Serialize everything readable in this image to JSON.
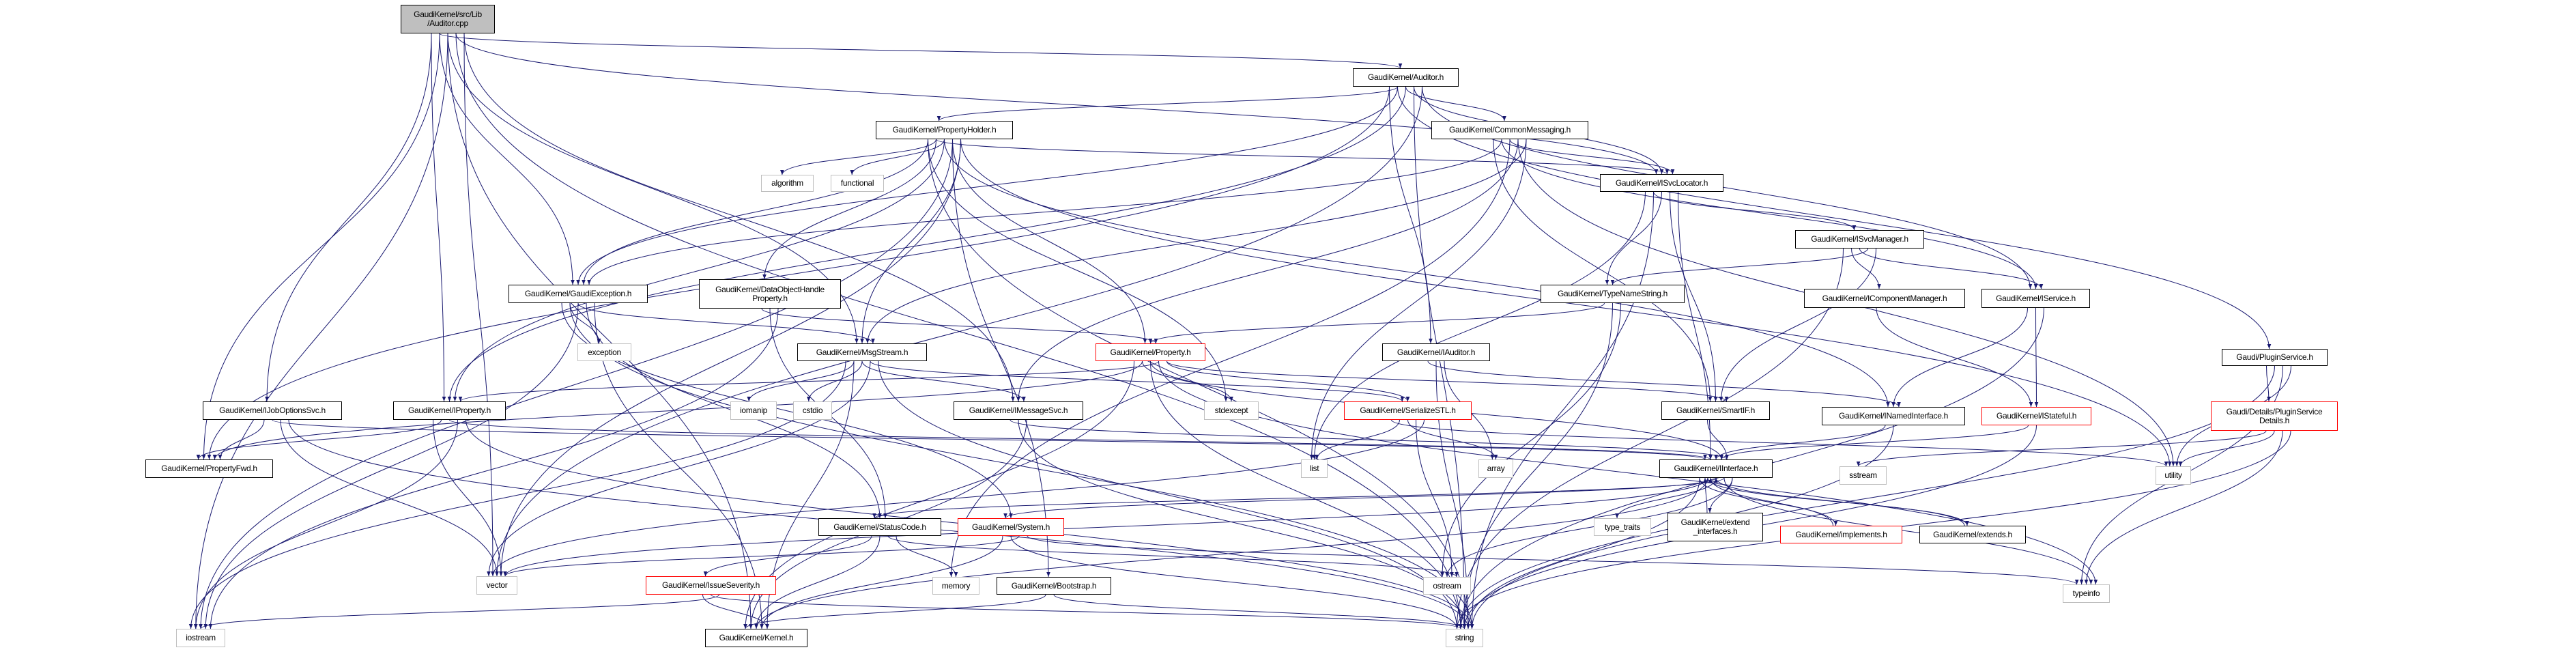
{
  "colors": {
    "edge": "#191970",
    "root_fill": "#bfbfbf",
    "red_border": "#ff0000",
    "external_border": "#bfbfbf",
    "normal_border": "#000000"
  },
  "nodes": [
    {
      "id": "cpp",
      "label": "GaudiKernel/src/Lib\n/Auditor.cpp",
      "kind": "root"
    },
    {
      "id": "auditor_h",
      "label": "GaudiKernel/Auditor.h",
      "kind": "normal"
    },
    {
      "id": "propholder",
      "label": "GaudiKernel/PropertyHolder.h",
      "kind": "normal"
    },
    {
      "id": "commonmsg",
      "label": "GaudiKernel/CommonMessaging.h",
      "kind": "normal"
    },
    {
      "id": "algorithm",
      "label": "algorithm",
      "kind": "ext"
    },
    {
      "id": "functional",
      "label": "functional",
      "kind": "ext"
    },
    {
      "id": "isvclocator",
      "label": "GaudiKernel/ISvcLocator.h",
      "kind": "normal"
    },
    {
      "id": "isvcmanager",
      "label": "GaudiKernel/ISvcManager.h",
      "kind": "normal"
    },
    {
      "id": "gaudiexc",
      "label": "GaudiKernel/GaudiException.h",
      "kind": "normal"
    },
    {
      "id": "dohp",
      "label": "GaudiKernel/DataObjectHandle\nProperty.h",
      "kind": "normal"
    },
    {
      "id": "typename",
      "label": "GaudiKernel/TypeNameString.h",
      "kind": "normal"
    },
    {
      "id": "icompmgr",
      "label": "GaudiKernel/IComponentManager.h",
      "kind": "normal"
    },
    {
      "id": "iservice",
      "label": "GaudiKernel/IService.h",
      "kind": "normal"
    },
    {
      "id": "exception",
      "label": "exception",
      "kind": "ext"
    },
    {
      "id": "msgstream",
      "label": "GaudiKernel/MsgStream.h",
      "kind": "normal"
    },
    {
      "id": "property",
      "label": "GaudiKernel/Property.h",
      "kind": "red"
    },
    {
      "id": "iauditor",
      "label": "GaudiKernel/IAuditor.h",
      "kind": "normal"
    },
    {
      "id": "pluginsvc",
      "label": "Gaudi/PluginService.h",
      "kind": "normal"
    },
    {
      "id": "ijobopt",
      "label": "GaudiKernel/IJobOptionsSvc.h",
      "kind": "normal"
    },
    {
      "id": "iproperty",
      "label": "GaudiKernel/IProperty.h",
      "kind": "normal"
    },
    {
      "id": "iomanip",
      "label": "iomanip",
      "kind": "ext"
    },
    {
      "id": "cstdio",
      "label": "cstdio",
      "kind": "ext"
    },
    {
      "id": "imsgsvc",
      "label": "GaudiKernel/IMessageSvc.h",
      "kind": "normal"
    },
    {
      "id": "stdexcept",
      "label": "stdexcept",
      "kind": "ext"
    },
    {
      "id": "serialize",
      "label": "GaudiKernel/SerializeSTL.h",
      "kind": "red"
    },
    {
      "id": "smartif",
      "label": "GaudiKernel/SmartIF.h",
      "kind": "normal"
    },
    {
      "id": "inamed",
      "label": "GaudiKernel/INamedInterface.h",
      "kind": "normal"
    },
    {
      "id": "istateful",
      "label": "GaudiKernel/IStateful.h",
      "kind": "red"
    },
    {
      "id": "psdetails",
      "label": "Gaudi/Details/PluginService\nDetails.h",
      "kind": "red"
    },
    {
      "id": "propfwd",
      "label": "GaudiKernel/PropertyFwd.h",
      "kind": "normal"
    },
    {
      "id": "list",
      "label": "list",
      "kind": "ext"
    },
    {
      "id": "array",
      "label": "array",
      "kind": "ext"
    },
    {
      "id": "iinterface",
      "label": "GaudiKernel/IInterface.h",
      "kind": "normal"
    },
    {
      "id": "sstream",
      "label": "sstream",
      "kind": "ext"
    },
    {
      "id": "utility",
      "label": "utility",
      "kind": "ext"
    },
    {
      "id": "statuscode",
      "label": "GaudiKernel/StatusCode.h",
      "kind": "normal"
    },
    {
      "id": "system",
      "label": "GaudiKernel/System.h",
      "kind": "red"
    },
    {
      "id": "typetraits",
      "label": "type_traits",
      "kind": "ext"
    },
    {
      "id": "extendif",
      "label": "GaudiKernel/extend\n_interfaces.h",
      "kind": "normal"
    },
    {
      "id": "implements",
      "label": "GaudiKernel/implements.h",
      "kind": "red"
    },
    {
      "id": "extends",
      "label": "GaudiKernel/extends.h",
      "kind": "normal"
    },
    {
      "id": "vector",
      "label": "vector",
      "kind": "ext"
    },
    {
      "id": "issuesev",
      "label": "GaudiKernel/IssueSeverity.h",
      "kind": "red"
    },
    {
      "id": "memory",
      "label": "memory",
      "kind": "ext"
    },
    {
      "id": "bootstrap",
      "label": "GaudiKernel/Bootstrap.h",
      "kind": "normal"
    },
    {
      "id": "ostream",
      "label": "ostream",
      "kind": "ext"
    },
    {
      "id": "typeinfo",
      "label": "typeinfo",
      "kind": "ext"
    },
    {
      "id": "iostream",
      "label": "iostream",
      "kind": "ext"
    },
    {
      "id": "kernel",
      "label": "GaudiKernel/Kernel.h",
      "kind": "normal"
    },
    {
      "id": "string",
      "label": "string",
      "kind": "ext"
    }
  ],
  "edges": [
    [
      "cpp",
      "auditor_h"
    ],
    [
      "cpp",
      "kernel"
    ],
    [
      "cpp",
      "isvclocator"
    ],
    [
      "cpp",
      "imsgsvc"
    ],
    [
      "cpp",
      "ijobopt"
    ],
    [
      "cpp",
      "gaudiexc"
    ],
    [
      "cpp",
      "msgstream"
    ],
    [
      "cpp",
      "string"
    ],
    [
      "cpp",
      "vector"
    ],
    [
      "cpp",
      "iproperty"
    ],
    [
      "cpp",
      "propfwd"
    ],
    [
      "cpp",
      "iostream"
    ],
    [
      "auditor_h",
      "propholder"
    ],
    [
      "auditor_h",
      "commonmsg"
    ],
    [
      "auditor_h",
      "isvclocator"
    ],
    [
      "auditor_h",
      "iservice"
    ],
    [
      "auditor_h",
      "iauditor"
    ],
    [
      "auditor_h",
      "pluginsvc"
    ],
    [
      "auditor_h",
      "iproperty"
    ],
    [
      "auditor_h",
      "string"
    ],
    [
      "auditor_h",
      "vector"
    ],
    [
      "auditor_h",
      "propfwd"
    ],
    [
      "auditor_h",
      "gaudiexc"
    ],
    [
      "propholder",
      "algorithm"
    ],
    [
      "propholder",
      "functional"
    ],
    [
      "propholder",
      "iostream"
    ],
    [
      "propholder",
      "vector"
    ],
    [
      "propholder",
      "stdexcept"
    ],
    [
      "propholder",
      "dohp"
    ],
    [
      "propholder",
      "iproperty"
    ],
    [
      "propholder",
      "property"
    ],
    [
      "propholder",
      "msgstream"
    ],
    [
      "propholder",
      "gaudiexc"
    ],
    [
      "propholder",
      "isvclocator"
    ],
    [
      "propholder",
      "inamed"
    ],
    [
      "propholder",
      "bootstrap"
    ],
    [
      "propholder",
      "utility"
    ],
    [
      "propholder",
      "string"
    ],
    [
      "commonmsg",
      "iservice"
    ],
    [
      "commonmsg",
      "isvclocator"
    ],
    [
      "commonmsg",
      "imsgsvc"
    ],
    [
      "commonmsg",
      "msgstream"
    ],
    [
      "commonmsg",
      "smartif"
    ],
    [
      "commonmsg",
      "gaudiexc"
    ],
    [
      "commonmsg",
      "memory"
    ],
    [
      "commonmsg",
      "utility"
    ],
    [
      "commonmsg",
      "list"
    ],
    [
      "isvclocator",
      "isvcmanager"
    ],
    [
      "isvclocator",
      "typename"
    ],
    [
      "isvclocator",
      "smartif"
    ],
    [
      "isvclocator",
      "iinterface"
    ],
    [
      "isvclocator",
      "list"
    ],
    [
      "isvclocator",
      "string"
    ],
    [
      "isvcmanager",
      "icompmgr"
    ],
    [
      "isvcmanager",
      "iservice"
    ],
    [
      "isvcmanager",
      "typename"
    ],
    [
      "isvcmanager",
      "smartif"
    ],
    [
      "isvcmanager",
      "string"
    ],
    [
      "icompmgr",
      "istateful"
    ],
    [
      "iservice",
      "inamed"
    ],
    [
      "iservice",
      "istateful"
    ],
    [
      "iservice",
      "string"
    ],
    [
      "typename",
      "property"
    ],
    [
      "typename",
      "string"
    ],
    [
      "typename",
      "ostream"
    ],
    [
      "iauditor",
      "inamed"
    ],
    [
      "iauditor",
      "string"
    ],
    [
      "iauditor",
      "array"
    ],
    [
      "pluginsvc",
      "psdetails"
    ],
    [
      "pluginsvc",
      "string"
    ],
    [
      "pluginsvc",
      "typeinfo"
    ],
    [
      "pluginsvc",
      "utility"
    ],
    [
      "psdetails",
      "sstream"
    ],
    [
      "psdetails",
      "utility"
    ],
    [
      "psdetails",
      "typeinfo"
    ],
    [
      "psdetails",
      "string"
    ],
    [
      "inamed",
      "iinterface"
    ],
    [
      "inamed",
      "string"
    ],
    [
      "istateful",
      "iinterface"
    ],
    [
      "istateful",
      "string"
    ],
    [
      "smartif",
      "iinterface"
    ],
    [
      "iinterface",
      "kernel"
    ],
    [
      "iinterface",
      "system"
    ],
    [
      "iinterface",
      "statuscode"
    ],
    [
      "iinterface",
      "extendif"
    ],
    [
      "iinterface",
      "implements"
    ],
    [
      "iinterface",
      "extends"
    ],
    [
      "iinterface",
      "typetraits"
    ],
    [
      "iinterface",
      "typeinfo"
    ],
    [
      "iinterface",
      "ostream"
    ],
    [
      "iinterface",
      "string"
    ],
    [
      "iinterface",
      "vector"
    ],
    [
      "extendif",
      "iinterface"
    ],
    [
      "implements",
      "iinterface"
    ],
    [
      "extends",
      "iinterface"
    ],
    [
      "gaudiexc",
      "exception"
    ],
    [
      "gaudiexc",
      "msgstream"
    ],
    [
      "gaudiexc",
      "statuscode"
    ],
    [
      "gaudiexc",
      "kernel"
    ],
    [
      "gaudiexc",
      "system"
    ],
    [
      "gaudiexc",
      "string"
    ],
    [
      "gaudiexc",
      "iostream"
    ],
    [
      "dohp",
      "property"
    ],
    [
      "dohp",
      "statuscode"
    ],
    [
      "dohp",
      "iostream"
    ],
    [
      "msgstream",
      "iomanip"
    ],
    [
      "msgstream",
      "cstdio"
    ],
    [
      "msgstream",
      "vector"
    ],
    [
      "msgstream",
      "string"
    ],
    [
      "msgstream",
      "iostream"
    ],
    [
      "msgstream",
      "kernel"
    ],
    [
      "msgstream",
      "imsgsvc"
    ],
    [
      "msgstream",
      "serialize"
    ],
    [
      "property",
      "stdexcept"
    ],
    [
      "property",
      "string"
    ],
    [
      "property",
      "iproperty"
    ],
    [
      "property",
      "serialize"
    ],
    [
      "property",
      "kernel"
    ],
    [
      "property",
      "propfwd"
    ],
    [
      "property",
      "iinterface"
    ],
    [
      "property",
      "typeinfo"
    ],
    [
      "property",
      "smartif"
    ],
    [
      "imsgsvc",
      "iinterface"
    ],
    [
      "imsgsvc",
      "string"
    ],
    [
      "imsgsvc",
      "kernel"
    ],
    [
      "serialize",
      "list"
    ],
    [
      "serialize",
      "array"
    ],
    [
      "serialize",
      "ostream"
    ],
    [
      "serialize",
      "vector"
    ],
    [
      "serialize",
      "utility"
    ],
    [
      "ijobopt",
      "propfwd"
    ],
    [
      "ijobopt",
      "iinterface"
    ],
    [
      "ijobopt",
      "vector"
    ],
    [
      "ijobopt",
      "string"
    ],
    [
      "iproperty",
      "propfwd"
    ],
    [
      "iproperty",
      "iinterface"
    ],
    [
      "iproperty",
      "iostream"
    ],
    [
      "iproperty",
      "string"
    ],
    [
      "iproperty",
      "vector"
    ],
    [
      "statuscode",
      "issuesev"
    ],
    [
      "statuscode",
      "kernel"
    ],
    [
      "statuscode",
      "ostream"
    ],
    [
      "statuscode",
      "memory"
    ],
    [
      "system",
      "kernel"
    ],
    [
      "system",
      "string"
    ],
    [
      "system",
      "vector"
    ],
    [
      "system",
      "typeinfo"
    ],
    [
      "issuesev",
      "kernel"
    ],
    [
      "issuesev",
      "string"
    ],
    [
      "issuesev",
      "iostream"
    ],
    [
      "bootstrap",
      "kernel"
    ],
    [
      "bootstrap",
      "string"
    ]
  ]
}
